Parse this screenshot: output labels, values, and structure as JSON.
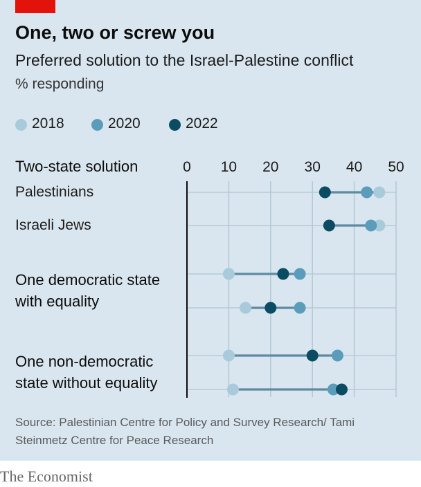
{
  "title": "One, two or screw you",
  "subtitle": "Preferred solution to the Israel-Palestine conflict",
  "unit": "% responding",
  "legend": [
    {
      "label": "2018",
      "color": "#a8cadb"
    },
    {
      "label": "2020",
      "color": "#5b9cbb"
    },
    {
      "label": "2022",
      "color": "#0b4c63"
    }
  ],
  "source": "Source: Palestinian Centre for Policy and Survey Research/ Tami Steinmetz Centre for Peace Research",
  "brand": "The Economist",
  "chart_data": {
    "type": "dot-range",
    "xlim": [
      0,
      50
    ],
    "x_ticks": [
      0,
      10,
      20,
      30,
      40,
      50
    ],
    "grid": "vertical",
    "legend_position": "top-left",
    "series_order": [
      "2018",
      "2020",
      "2022"
    ],
    "groups": [
      {
        "header_lines": [
          "Two-state solution"
        ],
        "rows": [
          {
            "label": "Palestinians",
            "values": {
              "2018": 46,
              "2020": 43,
              "2022": 33
            }
          },
          {
            "label": "Israeli Jews",
            "values": {
              "2018": 46,
              "2020": 44,
              "2022": 34
            }
          }
        ]
      },
      {
        "header_lines": [
          "One democratic state",
          "with equality"
        ],
        "rows": [
          {
            "label": "",
            "values": {
              "2018": 10,
              "2020": 27,
              "2022": 23
            }
          },
          {
            "label": "",
            "values": {
              "2018": 14,
              "2020": 27,
              "2022": 20
            }
          }
        ]
      },
      {
        "header_lines": [
          "One non-democratic",
          "state without equality"
        ],
        "rows": [
          {
            "label": "",
            "values": {
              "2018": 10,
              "2020": 36,
              "2022": 30
            }
          },
          {
            "label": "",
            "values": {
              "2018": 11,
              "2020": 35,
              "2022": 37
            }
          }
        ]
      }
    ]
  }
}
